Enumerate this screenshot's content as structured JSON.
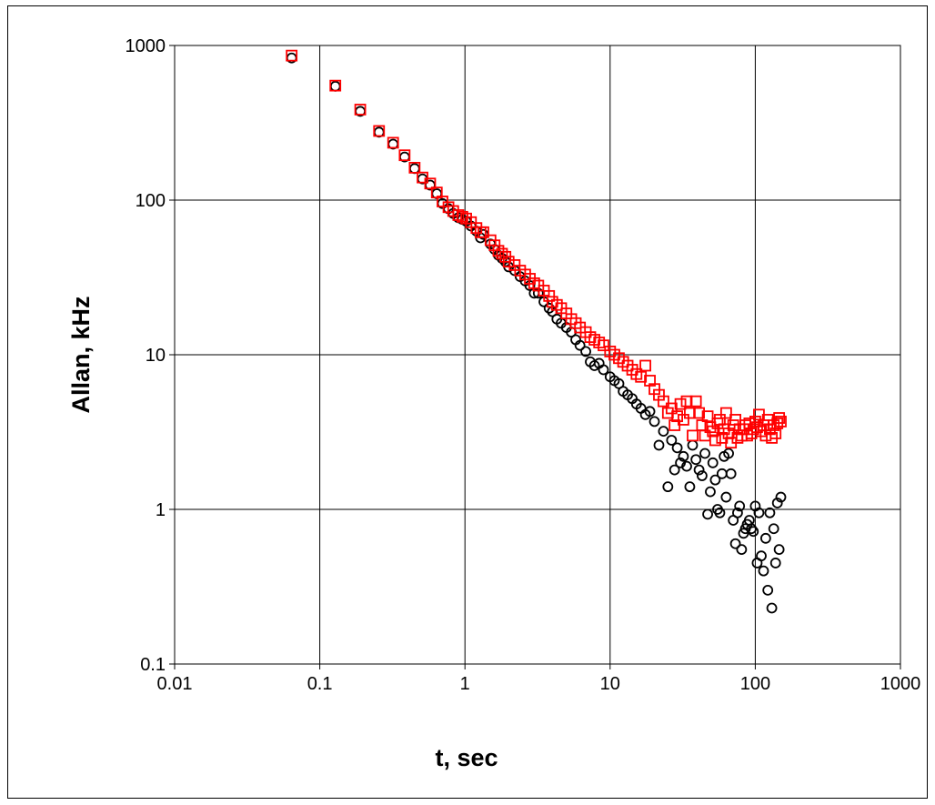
{
  "chart_data": {
    "type": "scatter",
    "title": "",
    "xlabel": "t, sec",
    "ylabel": "Allan, kHz",
    "x_scale": "log",
    "y_scale": "log",
    "xlim": [
      0.01,
      1000
    ],
    "ylim": [
      0.1,
      1000
    ],
    "grid": true,
    "legend": "none",
    "x_ticks": [
      "0.01",
      "0.1",
      "1",
      "10",
      "100",
      "1000"
    ],
    "y_ticks": [
      "0.1",
      "1",
      "10",
      "100",
      "1000"
    ],
    "series": [
      {
        "marker": "circle",
        "color": "#000000",
        "points": [
          [
            0.064,
            830
          ],
          [
            0.128,
            545
          ],
          [
            0.19,
            375
          ],
          [
            0.256,
            275
          ],
          [
            0.32,
            230
          ],
          [
            0.384,
            190
          ],
          [
            0.45,
            160
          ],
          [
            0.51,
            137
          ],
          [
            0.576,
            125
          ],
          [
            0.64,
            110
          ],
          [
            0.7,
            95
          ],
          [
            0.77,
            88
          ],
          [
            0.83,
            82
          ],
          [
            0.9,
            77
          ],
          [
            0.96,
            75
          ],
          [
            1.02,
            73
          ],
          [
            1.1,
            68
          ],
          [
            1.2,
            63
          ],
          [
            1.28,
            57
          ],
          [
            1.34,
            60
          ],
          [
            1.5,
            52
          ],
          [
            1.6,
            48
          ],
          [
            1.7,
            44
          ],
          [
            1.8,
            42
          ],
          [
            1.9,
            40
          ],
          [
            2.0,
            37
          ],
          [
            2.2,
            35
          ],
          [
            2.4,
            32
          ],
          [
            2.6,
            30
          ],
          [
            2.8,
            28
          ],
          [
            3.0,
            25
          ],
          [
            3.2,
            25
          ],
          [
            3.5,
            22
          ],
          [
            3.8,
            20
          ],
          [
            4.0,
            19
          ],
          [
            4.3,
            17
          ],
          [
            4.6,
            16
          ],
          [
            5.0,
            15
          ],
          [
            5.4,
            14
          ],
          [
            5.8,
            12.5
          ],
          [
            6.2,
            11.5
          ],
          [
            6.8,
            10.5
          ],
          [
            7.3,
            9
          ],
          [
            7.8,
            8.5
          ],
          [
            8.4,
            8.8
          ],
          [
            9.0,
            8
          ],
          [
            10.0,
            7.2
          ],
          [
            10.7,
            6.8
          ],
          [
            11.5,
            6.5
          ],
          [
            12.3,
            5.8
          ],
          [
            13.2,
            5.5
          ],
          [
            14.2,
            5.2
          ],
          [
            15.2,
            4.8
          ],
          [
            16.3,
            4.5
          ],
          [
            17.5,
            4.1
          ],
          [
            18.8,
            4.3
          ],
          [
            20.2,
            3.7
          ],
          [
            21.7,
            2.6
          ],
          [
            23.3,
            3.2
          ],
          [
            25.0,
            1.4
          ],
          [
            26.5,
            2.8
          ],
          [
            27.8,
            1.8
          ],
          [
            29.0,
            2.5
          ],
          [
            30.5,
            2.0
          ],
          [
            32.0,
            2.2
          ],
          [
            33.7,
            1.9
          ],
          [
            35.4,
            1.4
          ],
          [
            37.0,
            2.6
          ],
          [
            39.0,
            2.1
          ],
          [
            41.0,
            1.8
          ],
          [
            43.0,
            1.65
          ],
          [
            45.0,
            2.3
          ],
          [
            47.0,
            0.93
          ],
          [
            49.0,
            1.3
          ],
          [
            51.0,
            2.0
          ],
          [
            53.0,
            1.55
          ],
          [
            55.0,
            1.0
          ],
          [
            57.0,
            0.95
          ],
          [
            59.0,
            1.7
          ],
          [
            61.0,
            2.2
          ],
          [
            63.0,
            1.2
          ],
          [
            65.5,
            2.3
          ],
          [
            68.0,
            1.7
          ],
          [
            70.5,
            0.85
          ],
          [
            73.0,
            0.6
          ],
          [
            75.5,
            0.95
          ],
          [
            78.0,
            1.05
          ],
          [
            80.5,
            0.55
          ],
          [
            83.0,
            0.7
          ],
          [
            85.5,
            0.75
          ],
          [
            88.0,
            0.8
          ],
          [
            91.0,
            0.85
          ],
          [
            94.0,
            0.75
          ],
          [
            97.0,
            0.72
          ],
          [
            100.0,
            1.05
          ],
          [
            103.0,
            0.45
          ],
          [
            106.0,
            0.95
          ],
          [
            110.0,
            0.5
          ],
          [
            114.0,
            0.4
          ],
          [
            118.0,
            0.65
          ],
          [
            122.0,
            0.3
          ],
          [
            126.0,
            0.95
          ],
          [
            130.0,
            0.23
          ],
          [
            134.0,
            0.75
          ],
          [
            138.0,
            0.45
          ],
          [
            142.0,
            1.1
          ],
          [
            146.0,
            0.55
          ],
          [
            150.0,
            1.2
          ]
        ]
      },
      {
        "marker": "square",
        "color": "#ff0000",
        "points": [
          [
            0.064,
            860
          ],
          [
            0.128,
            550
          ],
          [
            0.19,
            385
          ],
          [
            0.256,
            280
          ],
          [
            0.32,
            235
          ],
          [
            0.384,
            195
          ],
          [
            0.45,
            162
          ],
          [
            0.51,
            140
          ],
          [
            0.576,
            128
          ],
          [
            0.64,
            112
          ],
          [
            0.7,
            98
          ],
          [
            0.77,
            90
          ],
          [
            0.83,
            85
          ],
          [
            0.9,
            80
          ],
          [
            0.96,
            78
          ],
          [
            1.02,
            76
          ],
          [
            1.1,
            72
          ],
          [
            1.2,
            66
          ],
          [
            1.28,
            62
          ],
          [
            1.34,
            62
          ],
          [
            1.5,
            55
          ],
          [
            1.6,
            51
          ],
          [
            1.7,
            47
          ],
          [
            1.8,
            45
          ],
          [
            1.9,
            43
          ],
          [
            2.0,
            40
          ],
          [
            2.2,
            38
          ],
          [
            2.4,
            35
          ],
          [
            2.6,
            33
          ],
          [
            2.8,
            31
          ],
          [
            3.0,
            29
          ],
          [
            3.2,
            28
          ],
          [
            3.5,
            26
          ],
          [
            3.8,
            24
          ],
          [
            4.0,
            22
          ],
          [
            4.3,
            21
          ],
          [
            4.6,
            20
          ],
          [
            5.0,
            18.5
          ],
          [
            5.4,
            17
          ],
          [
            5.8,
            16
          ],
          [
            6.2,
            15
          ],
          [
            6.8,
            14
          ],
          [
            7.3,
            13
          ],
          [
            7.8,
            12.5
          ],
          [
            8.4,
            12
          ],
          [
            9.0,
            11.5
          ],
          [
            10.0,
            10.5
          ],
          [
            10.7,
            10
          ],
          [
            11.5,
            9.5
          ],
          [
            12.3,
            9
          ],
          [
            13.2,
            8.5
          ],
          [
            14.2,
            8
          ],
          [
            15.2,
            7.5
          ],
          [
            16.3,
            7.2
          ],
          [
            17.5,
            8.5
          ],
          [
            18.8,
            6.8
          ],
          [
            20.2,
            6
          ],
          [
            21.7,
            5.5
          ],
          [
            23.3,
            5
          ],
          [
            25.0,
            4.2
          ],
          [
            26.5,
            4.5
          ],
          [
            27.8,
            3.5
          ],
          [
            29.0,
            4
          ],
          [
            30.5,
            4.8
          ],
          [
            32.0,
            3.8
          ],
          [
            33.7,
            5
          ],
          [
            35.4,
            4.2
          ],
          [
            37.0,
            3
          ],
          [
            39.0,
            5
          ],
          [
            41.0,
            4.2
          ],
          [
            43.0,
            3.5
          ],
          [
            45.0,
            3
          ],
          [
            47.0,
            4
          ],
          [
            49.0,
            3.4
          ],
          [
            51.0,
            3.2
          ],
          [
            53.0,
            2.8
          ],
          [
            55.0,
            3.6
          ],
          [
            57.0,
            3.8
          ],
          [
            59.0,
            2.9
          ],
          [
            61.0,
            3.3
          ],
          [
            63.0,
            4.2
          ],
          [
            65.5,
            3.1
          ],
          [
            68.0,
            2.7
          ],
          [
            70.5,
            3.5
          ],
          [
            73.0,
            3.8
          ],
          [
            75.5,
            2.9
          ],
          [
            78.0,
            3.3
          ],
          [
            80.5,
            3.0
          ],
          [
            83.0,
            3.3
          ],
          [
            85.5,
            3.5
          ],
          [
            88.0,
            3.0
          ],
          [
            91.0,
            3.6
          ],
          [
            94.0,
            3.1
          ],
          [
            97.0,
            3.3
          ],
          [
            100.0,
            3.7
          ],
          [
            103.0,
            3.4
          ],
          [
            106.0,
            4.1
          ],
          [
            110.0,
            3.2
          ],
          [
            114.0,
            3.5
          ],
          [
            118.0,
            3.0
          ],
          [
            122.0,
            3.8
          ],
          [
            126.0,
            3.3
          ],
          [
            130.0,
            2.9
          ],
          [
            134.0,
            3.5
          ],
          [
            138.0,
            3.1
          ],
          [
            142.0,
            3.6
          ],
          [
            146.0,
            3.9
          ],
          [
            150.0,
            3.7
          ]
        ]
      }
    ]
  }
}
